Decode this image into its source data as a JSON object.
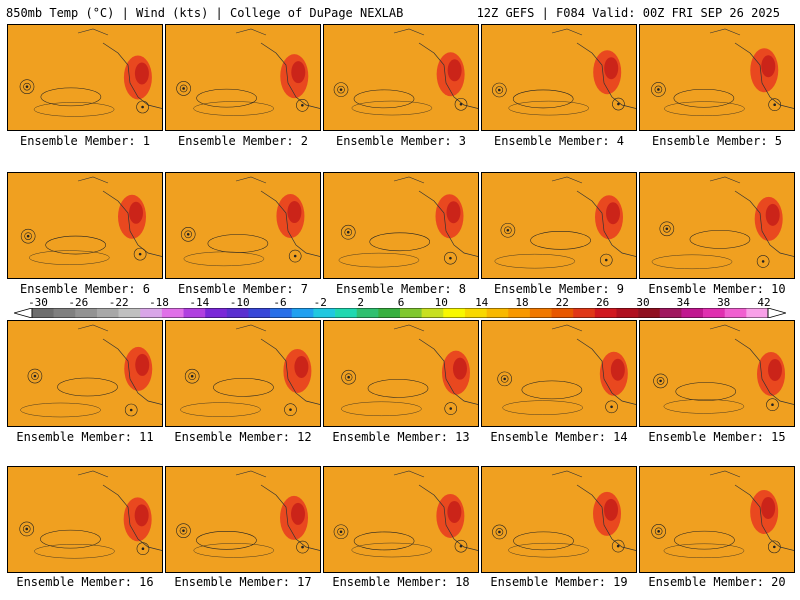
{
  "header": {
    "left": "850mb Temp (°C) | Wind (kts) | College of DuPage NEXLAB",
    "right": "12Z GEFS | F084 Valid: 00Z FRI SEP 26 2025"
  },
  "panels": [
    {
      "label": "Ensemble Member: 1"
    },
    {
      "label": "Ensemble Member: 2"
    },
    {
      "label": "Ensemble Member: 3"
    },
    {
      "label": "Ensemble Member: 4"
    },
    {
      "label": "Ensemble Member: 5"
    },
    {
      "label": "Ensemble Member: 6"
    },
    {
      "label": "Ensemble Member: 7"
    },
    {
      "label": "Ensemble Member: 8"
    },
    {
      "label": "Ensemble Member: 9"
    },
    {
      "label": "Ensemble Member: 10"
    },
    {
      "label": "Ensemble Member: 11"
    },
    {
      "label": "Ensemble Member: 12"
    },
    {
      "label": "Ensemble Member: 13"
    },
    {
      "label": "Ensemble Member: 14"
    },
    {
      "label": "Ensemble Member: 15"
    },
    {
      "label": "Ensemble Member: 16"
    },
    {
      "label": "Ensemble Member: 17"
    },
    {
      "label": "Ensemble Member: 18"
    },
    {
      "label": "Ensemble Member: 19"
    },
    {
      "label": "Ensemble Member: 20"
    }
  ],
  "colorbar": {
    "labels": [
      "-30",
      "-26",
      "-22",
      "-18",
      "-14",
      "-10",
      "-6",
      "-2",
      "2",
      "6",
      "10",
      "14",
      "18",
      "22",
      "26",
      "30",
      "34",
      "38",
      "42"
    ],
    "colors": [
      "#6e6e6e",
      "#808080",
      "#939393",
      "#a8a8a8",
      "#c0c0c0",
      "#d9a6e8",
      "#e070e8",
      "#b040e0",
      "#7a28d8",
      "#5a30d0",
      "#3848d8",
      "#2870e8",
      "#20a0f0",
      "#20c8e0",
      "#20d8b0",
      "#30c070",
      "#38b040",
      "#80c830",
      "#c8e020",
      "#f8f800",
      "#f8d800",
      "#f8b800",
      "#f89800",
      "#f07800",
      "#e85800",
      "#e03818",
      "#d01820",
      "#b01020",
      "#901020",
      "#a01860",
      "#c01890",
      "#e030b0",
      "#f060d0",
      "#f8a0e8"
    ]
  }
}
